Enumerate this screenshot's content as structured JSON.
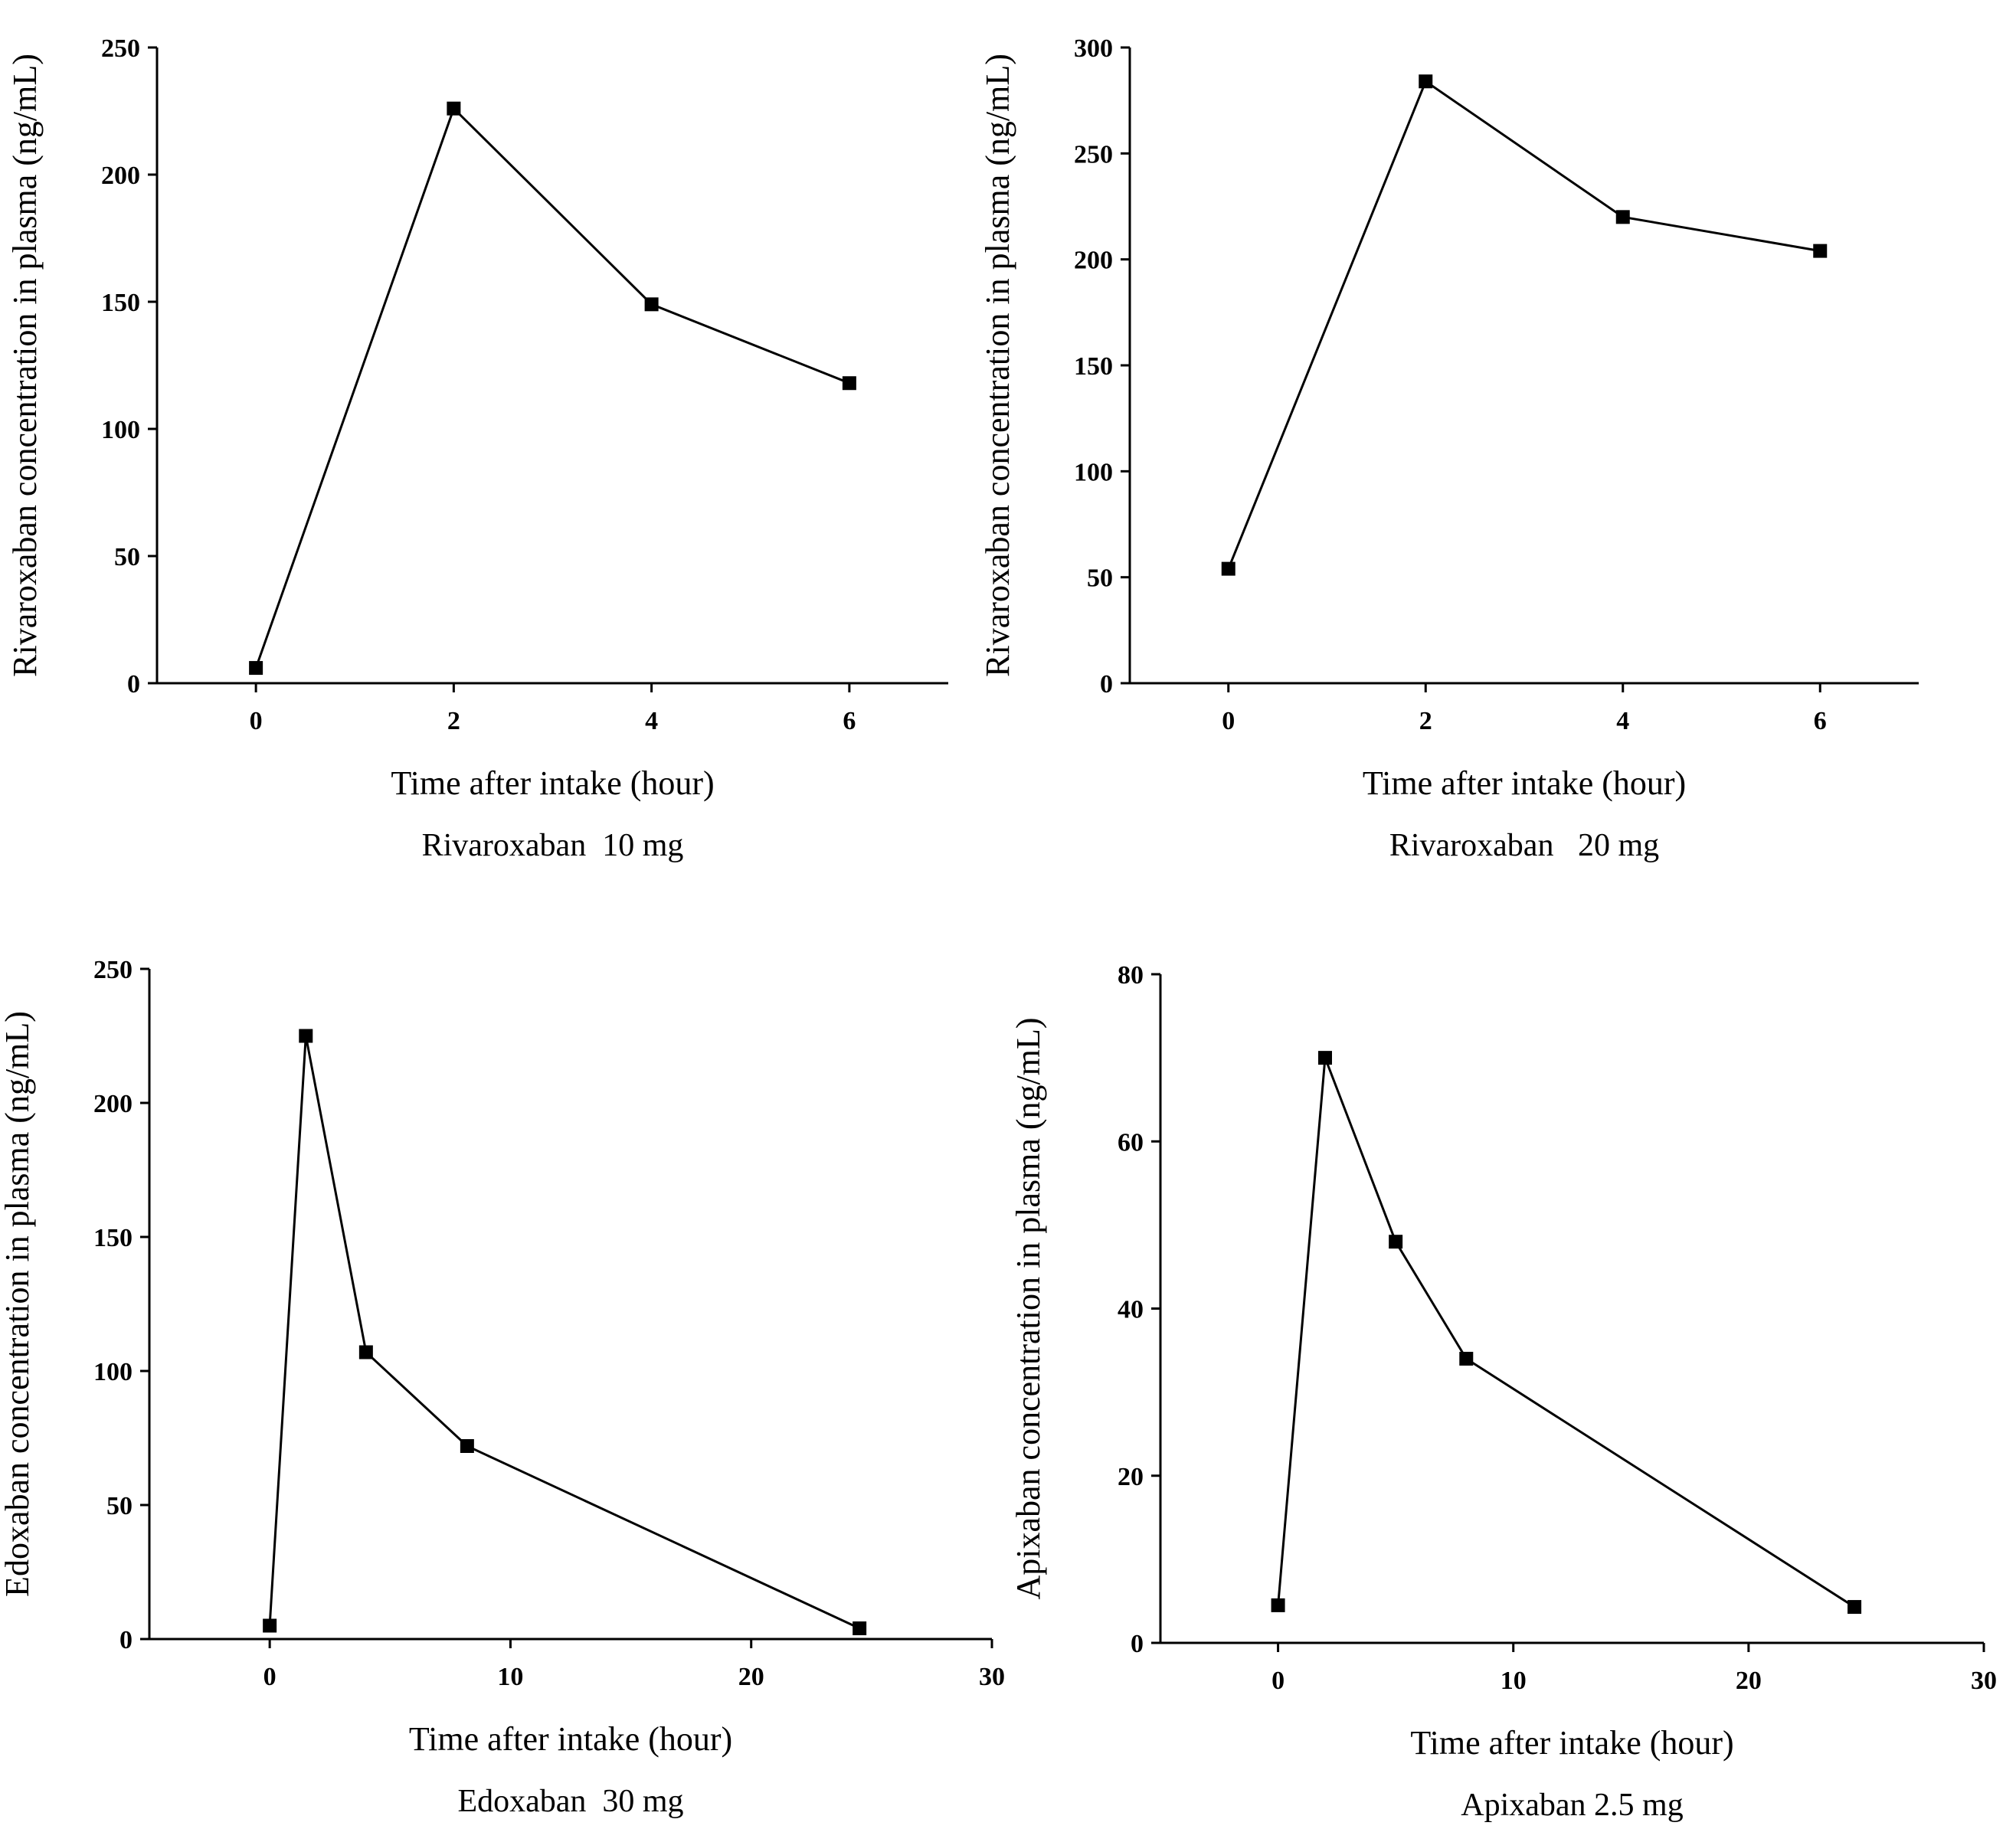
{
  "chart_data": [
    {
      "type": "line",
      "id": "rivaroxaban-10",
      "caption": "Rivaroxaban  10 mg",
      "xlabel": "Time after intake (hour)",
      "ylabel": "Rivaroxaban concentration in plasma (ng/mL)",
      "xlim": [
        -1,
        7
      ],
      "ylim": [
        0,
        250
      ],
      "xticks": [
        0,
        2,
        4,
        6
      ],
      "yticks": [
        0,
        50,
        100,
        150,
        200,
        250
      ],
      "x": [
        0,
        2,
        4,
        6
      ],
      "y": [
        6,
        226,
        149,
        118
      ],
      "marker": "square",
      "grid": false
    },
    {
      "type": "line",
      "id": "rivaroxaban-20",
      "caption": "Rivaroxaban   20 mg",
      "xlabel": "Time after intake (hour)",
      "ylabel": "Rivaroxaban concentration in plasma (ng/mL)",
      "xlim": [
        -1,
        7
      ],
      "ylim": [
        0,
        300
      ],
      "xticks": [
        0,
        2,
        4,
        6
      ],
      "yticks": [
        0,
        50,
        100,
        150,
        200,
        250,
        300
      ],
      "x": [
        0,
        2,
        4,
        6
      ],
      "y": [
        54,
        284,
        220,
        204
      ],
      "marker": "square",
      "grid": false
    },
    {
      "type": "line",
      "id": "edoxaban-30",
      "caption": "Edoxaban  30 mg",
      "xlabel": "Time after intake (hour)",
      "ylabel": "Edoxaban concentration in plasma (ng/mL)",
      "xlim": [
        -5,
        30
      ],
      "ylim": [
        0,
        250
      ],
      "xticks": [
        0,
        10,
        20,
        30
      ],
      "yticks": [
        0,
        50,
        100,
        150,
        200,
        250
      ],
      "x": [
        0,
        1.5,
        4,
        8.2,
        24.5
      ],
      "y": [
        5,
        225,
        107,
        72,
        4
      ],
      "marker": "square",
      "grid": false
    },
    {
      "type": "line",
      "id": "apixaban-2-5",
      "caption": "Apixaban 2.5 mg",
      "xlabel": "Time after intake (hour)",
      "ylabel": "Apixaban concentration in plasma (ng/mL)",
      "xlim": [
        -5,
        30
      ],
      "ylim": [
        0,
        80
      ],
      "xticks": [
        0,
        10,
        20,
        30
      ],
      "yticks": [
        0,
        20,
        40,
        60,
        80
      ],
      "x": [
        0,
        2,
        5,
        8,
        24.5
      ],
      "y": [
        4.5,
        70,
        48,
        34,
        4.3
      ],
      "marker": "square",
      "grid": false
    }
  ]
}
